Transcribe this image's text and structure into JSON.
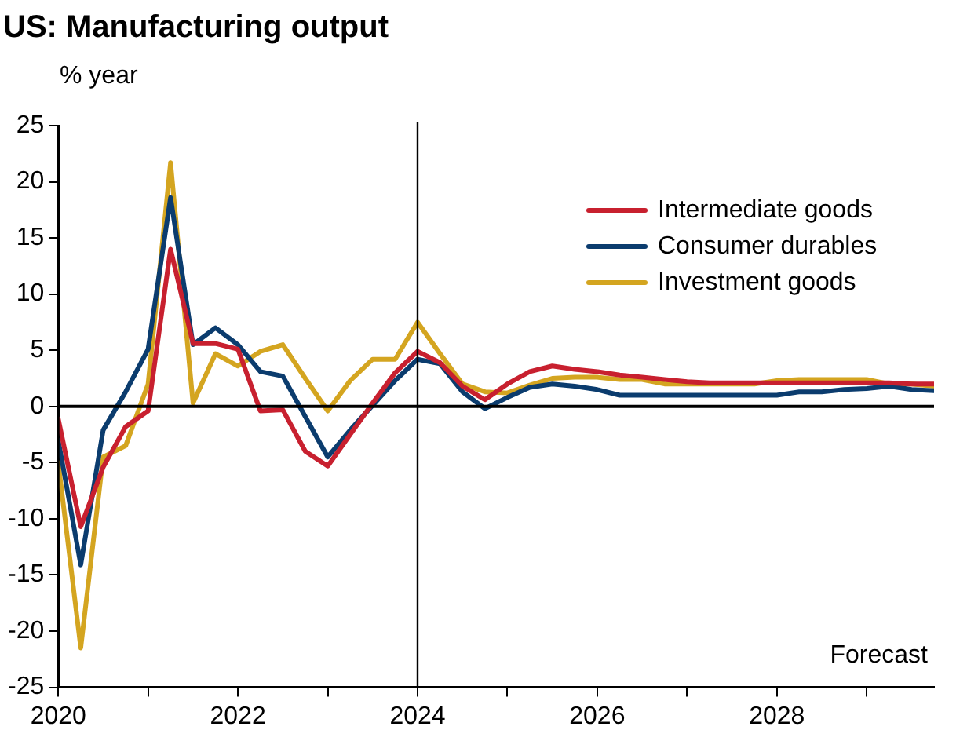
{
  "chart_data": {
    "type": "line",
    "title": "US: Manufacturing output",
    "ylabel": "% year",
    "x": [
      2020,
      2020.25,
      2020.5,
      2020.75,
      2021,
      2021.25,
      2021.5,
      2021.75,
      2022,
      2022.25,
      2022.5,
      2022.75,
      2023,
      2023.25,
      2023.5,
      2023.75,
      2024,
      2024.25,
      2024.5,
      2024.75,
      2025,
      2025.25,
      2025.5,
      2025.75,
      2026,
      2026.25,
      2026.5,
      2026.75,
      2027,
      2027.25,
      2027.5,
      2027.75,
      2028,
      2028.25,
      2028.5,
      2028.75,
      2029,
      2029.25,
      2029.5,
      2029.75
    ],
    "series": [
      {
        "name": "Intermediate goods",
        "color": "#c8202f",
        "values": [
          -1.1,
          -10.7,
          -5.4,
          -1.8,
          -0.4,
          14.0,
          5.6,
          5.6,
          5.1,
          -0.4,
          -0.3,
          -4.0,
          -5.3,
          -2.5,
          0.3,
          3.0,
          4.9,
          3.9,
          1.8,
          0.6,
          2.0,
          3.1,
          3.6,
          3.3,
          3.1,
          2.8,
          2.6,
          2.4,
          2.2,
          2.1,
          2.1,
          2.1,
          2.1,
          2.1,
          2.1,
          2.1,
          2.1,
          2.1,
          2.0,
          2.0
        ]
      },
      {
        "name": "Consumer durables",
        "color": "#0b3c6e",
        "values": [
          -3.0,
          -14.1,
          -2.1,
          1.3,
          5.1,
          18.6,
          5.5,
          7.0,
          5.5,
          3.1,
          2.7,
          -0.9,
          -4.5,
          -2.1,
          0.1,
          2.3,
          4.2,
          3.8,
          1.3,
          -0.2,
          0.8,
          1.7,
          2.0,
          1.8,
          1.5,
          1.0,
          1.0,
          1.0,
          1.0,
          1.0,
          1.0,
          1.0,
          1.0,
          1.3,
          1.3,
          1.5,
          1.6,
          1.8,
          1.5,
          1.4
        ]
      },
      {
        "name": "Investment goods",
        "color": "#d4a520",
        "values": [
          -5.0,
          -21.5,
          -4.5,
          -3.5,
          2.0,
          21.7,
          0.3,
          4.7,
          3.6,
          4.9,
          5.5,
          2.5,
          -0.4,
          2.3,
          4.2,
          4.2,
          7.5,
          4.7,
          2.0,
          1.3,
          1.2,
          1.9,
          2.5,
          2.6,
          2.6,
          2.4,
          2.4,
          2.0,
          2.0,
          2.0,
          2.0,
          2.0,
          2.3,
          2.4,
          2.4,
          2.4,
          2.4,
          2.0,
          2.0,
          1.8
        ]
      }
    ],
    "xlim": [
      2020,
      2029.75
    ],
    "xticks": [
      2020,
      {
        "value": 2021,
        "label": null
      },
      2022,
      {
        "value": 2023,
        "label": null
      },
      2024,
      {
        "value": 2025,
        "label": null
      },
      2026,
      {
        "value": 2027,
        "label": null
      },
      2028,
      {
        "value": 2029,
        "label": null
      }
    ],
    "ylim": [
      -25,
      25
    ],
    "yticks": [
      -25,
      -20,
      -15,
      -10,
      -5,
      0,
      5,
      10,
      15,
      20,
      25
    ],
    "ref_lines": [
      {
        "axis": "x",
        "value": 2024,
        "color": "#000000"
      },
      {
        "axis": "y",
        "value": 0,
        "color": "#000000"
      }
    ],
    "annotations": [
      "Forecast"
    ],
    "legend": "top right",
    "grid": false,
    "marker": "none",
    "line_style": "solid"
  }
}
